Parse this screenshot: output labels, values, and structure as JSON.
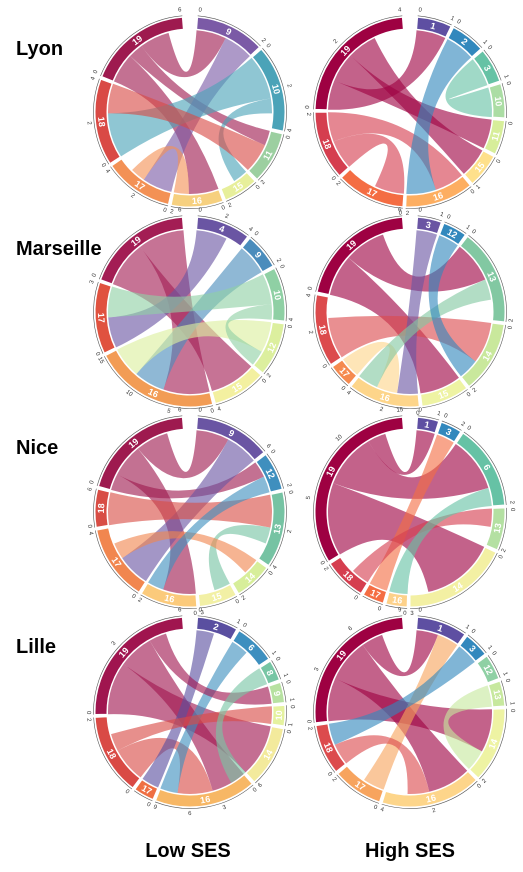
{
  "row_labels": [
    "Lyon",
    "Marseille",
    "Nice",
    "Lille"
  ],
  "column_labels": [
    "Low SES",
    "High SES"
  ],
  "chart_data": [
    {
      "type": "chord",
      "city": "Lyon",
      "ses": "Low SES",
      "sectors": [
        {
          "label": "9",
          "value": 4,
          "color": "#7b5aa6",
          "ticks": [
            "0",
            "2"
          ]
        },
        {
          "label": "10",
          "value": 5,
          "color": "#4ba3b8",
          "ticks": [
            "0",
            "2",
            "4"
          ]
        },
        {
          "label": "11",
          "value": 3,
          "color": "#9ccfa0",
          "ticks": [
            "0",
            "2"
          ]
        },
        {
          "label": "15",
          "value": 2,
          "color": "#e7ef9b",
          "ticks": [
            "0",
            "2"
          ]
        },
        {
          "label": "16",
          "value": 3,
          "color": "#f6d07f",
          "ticks": [
            "0",
            "2"
          ]
        },
        {
          "label": "17",
          "value": 4,
          "color": "#f39155",
          "ticks": [
            "0",
            "2",
            "4"
          ]
        },
        {
          "label": "18",
          "value": 5,
          "color": "#d94a45",
          "ticks": [
            "0",
            "2",
            "4"
          ]
        },
        {
          "label": "19",
          "value": 6,
          "color": "#9e1a4f",
          "ticks": [
            "0",
            "6"
          ]
        }
      ],
      "links": [
        {
          "from": "19",
          "to": "16",
          "value": 2
        },
        {
          "from": "19",
          "to": "11",
          "value": 1
        },
        {
          "from": "19",
          "to": "9",
          "value": 2
        },
        {
          "from": "9",
          "to": "17",
          "value": 2
        },
        {
          "from": "10",
          "to": "18",
          "value": 3
        },
        {
          "from": "10",
          "to": "15",
          "value": 1
        },
        {
          "from": "18",
          "to": "11",
          "value": 2
        },
        {
          "from": "17",
          "to": "16",
          "value": 1
        }
      ]
    },
    {
      "type": "chord",
      "city": "Lyon",
      "ses": "High SES",
      "sectors": [
        {
          "label": "1",
          "value": 1,
          "color": "#5e4fa2",
          "ticks": [
            "0",
            "1"
          ]
        },
        {
          "label": "2",
          "value": 1,
          "color": "#3288bd",
          "ticks": [
            "0",
            "1"
          ]
        },
        {
          "label": "3",
          "value": 1,
          "color": "#66c2a5",
          "ticks": [
            "0",
            "1"
          ]
        },
        {
          "label": "10",
          "value": 1,
          "color": "#abdda4",
          "ticks": [
            "0"
          ]
        },
        {
          "label": "11",
          "value": 1,
          "color": "#d7ee9a",
          "ticks": [
            "0"
          ]
        },
        {
          "label": "15",
          "value": 1,
          "color": "#fee08b",
          "ticks": [
            "0",
            "1"
          ]
        },
        {
          "label": "16",
          "value": 2,
          "color": "#fdae61",
          "ticks": [
            "0",
            "2"
          ]
        },
        {
          "label": "17",
          "value": 2,
          "color": "#f46d43",
          "ticks": [
            "0",
            "2"
          ]
        },
        {
          "label": "18",
          "value": 2,
          "color": "#d53e4f",
          "ticks": [
            "0",
            "2"
          ]
        },
        {
          "label": "19",
          "value": 4,
          "color": "#9e0142",
          "ticks": [
            "0",
            "2",
            "4"
          ]
        }
      ],
      "links": [
        {
          "from": "19",
          "to": "1",
          "value": 1
        },
        {
          "from": "19",
          "to": "11",
          "value": 1
        },
        {
          "from": "19",
          "to": "15",
          "value": 1
        },
        {
          "from": "18",
          "to": "17",
          "value": 1
        },
        {
          "from": "18",
          "to": "16",
          "value": 1
        },
        {
          "from": "2",
          "to": "16",
          "value": 1
        },
        {
          "from": "3",
          "to": "10",
          "value": 1
        }
      ]
    },
    {
      "type": "chord",
      "city": "Marseille",
      "ses": "Low SES",
      "sectors": [
        {
          "label": "4",
          "value": 3,
          "color": "#6a55a3",
          "ticks": [
            "0",
            "2",
            "4"
          ]
        },
        {
          "label": "9",
          "value": 2,
          "color": "#4a8cbc",
          "ticks": [
            "0",
            "2"
          ]
        },
        {
          "label": "10",
          "value": 3,
          "color": "#8fd0a4",
          "ticks": [
            "0",
            "4"
          ]
        },
        {
          "label": "12",
          "value": 3,
          "color": "#dcef9e",
          "ticks": [
            "0",
            "2"
          ]
        },
        {
          "label": "15",
          "value": 3,
          "color": "#f3f0a0",
          "ticks": [
            "0",
            "4"
          ]
        },
        {
          "label": "16",
          "value": 7,
          "color": "#f29c55",
          "ticks": [
            "0",
            "5",
            "10",
            "15"
          ]
        },
        {
          "label": "17",
          "value": 4,
          "color": "#e0523f",
          "ticks": [
            "0",
            "3"
          ]
        },
        {
          "label": "19",
          "value": 6,
          "color": "#a31d54",
          "ticks": [
            "0",
            "6"
          ]
        }
      ],
      "links": [
        {
          "from": "19",
          "to": "15",
          "value": 3
        },
        {
          "from": "19",
          "to": "16",
          "value": 3
        },
        {
          "from": "4",
          "to": "17",
          "value": 2
        },
        {
          "from": "9",
          "to": "16",
          "value": 2
        },
        {
          "from": "10",
          "to": "17",
          "value": 2
        },
        {
          "from": "12",
          "to": "16",
          "value": 2
        },
        {
          "from": "10",
          "to": "12",
          "value": 1
        }
      ]
    },
    {
      "type": "chord",
      "city": "Marseille",
      "ses": "High SES",
      "sectors": [
        {
          "label": "3",
          "value": 1,
          "color": "#6a55a3",
          "ticks": [
            "0",
            "1"
          ]
        },
        {
          "label": "12",
          "value": 1,
          "color": "#3288bd",
          "ticks": [
            "0",
            "1"
          ]
        },
        {
          "label": "13",
          "value": 4,
          "color": "#82c8a2",
          "ticks": [
            "0",
            "2"
          ]
        },
        {
          "label": "14",
          "value": 3,
          "color": "#c9e89c",
          "ticks": [
            "0",
            "2"
          ]
        },
        {
          "label": "15",
          "value": 2,
          "color": "#eef3a3",
          "ticks": [
            "0"
          ]
        },
        {
          "label": "16",
          "value": 3,
          "color": "#fdd58a",
          "ticks": [
            "0",
            "2",
            "4"
          ]
        },
        {
          "label": "17",
          "value": 1,
          "color": "#f58a4f",
          "ticks": [
            "0"
          ]
        },
        {
          "label": "18",
          "value": 3,
          "color": "#dc4b4d",
          "ticks": [
            "0",
            "2",
            "4"
          ]
        },
        {
          "label": "19",
          "value": 5,
          "color": "#9e0142",
          "ticks": [
            "0",
            "6"
          ]
        }
      ],
      "links": [
        {
          "from": "19",
          "to": "15",
          "value": 2
        },
        {
          "from": "19",
          "to": "13",
          "value": 2
        },
        {
          "from": "18",
          "to": "14",
          "value": 2
        },
        {
          "from": "3",
          "to": "16",
          "value": 1
        },
        {
          "from": "16",
          "to": "17",
          "value": 1
        },
        {
          "from": "13",
          "to": "16",
          "value": 1
        },
        {
          "from": "12",
          "to": "14",
          "value": 1
        }
      ]
    },
    {
      "type": "chord",
      "city": "Nice",
      "ses": "Low SES",
      "sectors": [
        {
          "label": "9",
          "value": 4,
          "color": "#6a55a3",
          "ticks": [
            "0",
            "6"
          ]
        },
        {
          "label": "12",
          "value": 2,
          "color": "#3f8fbe",
          "ticks": [
            "0",
            "2"
          ]
        },
        {
          "label": "13",
          "value": 4,
          "color": "#76c3a3",
          "ticks": [
            "0",
            "2",
            "4"
          ]
        },
        {
          "label": "14",
          "value": 2,
          "color": "#d7ee9a",
          "ticks": [
            "0",
            "2"
          ]
        },
        {
          "label": "15",
          "value": 2,
          "color": "#f2f0a5",
          "ticks": [
            "0",
            "3"
          ]
        },
        {
          "label": "16",
          "value": 3,
          "color": "#fbca7b",
          "ticks": [
            "0",
            "2"
          ]
        },
        {
          "label": "17",
          "value": 4,
          "color": "#f1864f",
          "ticks": [
            "0",
            "4"
          ]
        },
        {
          "label": "18",
          "value": 2,
          "color": "#d84d45",
          "ticks": [
            "0",
            "6"
          ]
        },
        {
          "label": "19",
          "value": 6,
          "color": "#9e1a4f",
          "ticks": [
            "0",
            "6"
          ]
        }
      ],
      "links": [
        {
          "from": "19",
          "to": "12",
          "value": 1
        },
        {
          "from": "19",
          "to": "16",
          "value": 2
        },
        {
          "from": "19",
          "to": "9",
          "value": 2
        },
        {
          "from": "9",
          "to": "17",
          "value": 2
        },
        {
          "from": "18",
          "to": "13",
          "value": 2
        },
        {
          "from": "13",
          "to": "15",
          "value": 1
        },
        {
          "from": "17",
          "to": "14",
          "value": 1
        },
        {
          "from": "12",
          "to": "16",
          "value": 1
        }
      ]
    },
    {
      "type": "chord",
      "city": "Nice",
      "ses": "High SES",
      "sectors": [
        {
          "label": "1",
          "value": 1,
          "color": "#5e4fa2",
          "ticks": [
            "0",
            "1"
          ]
        },
        {
          "label": "3",
          "value": 1,
          "color": "#3288bd",
          "ticks": [
            "0",
            "2"
          ]
        },
        {
          "label": "6",
          "value": 4,
          "color": "#66c2a5",
          "ticks": [
            "0",
            "2"
          ]
        },
        {
          "label": "13",
          "value": 2,
          "color": "#b4e0a2",
          "ticks": [
            "0",
            "2"
          ]
        },
        {
          "label": "14",
          "value": 5,
          "color": "#f3f0a3",
          "ticks": [
            "0",
            "3"
          ]
        },
        {
          "label": "16",
          "value": 1,
          "color": "#fdd18a",
          "ticks": [
            "0"
          ]
        },
        {
          "label": "17",
          "value": 1,
          "color": "#f46d43",
          "ticks": [
            "0"
          ]
        },
        {
          "label": "18",
          "value": 2,
          "color": "#d53e4f",
          "ticks": [
            "0",
            "2"
          ]
        },
        {
          "label": "19",
          "value": 9,
          "color": "#9e0142",
          "ticks": [
            "0",
            "5",
            "10",
            "15"
          ]
        }
      ],
      "links": [
        {
          "from": "19",
          "to": "14",
          "value": 4
        },
        {
          "from": "19",
          "to": "6",
          "value": 3
        },
        {
          "from": "19",
          "to": "1",
          "value": 1
        },
        {
          "from": "17",
          "to": "3",
          "value": 1
        },
        {
          "from": "18",
          "to": "13",
          "value": 1
        },
        {
          "from": "6",
          "to": "16",
          "value": 1
        }
      ]
    },
    {
      "type": "chord",
      "city": "Lille",
      "ses": "Low SES",
      "sectors": [
        {
          "label": "2",
          "value": 2,
          "color": "#5a4fa0",
          "ticks": [
            "0",
            "1"
          ]
        },
        {
          "label": "6",
          "value": 2,
          "color": "#3d8fbf",
          "ticks": [
            "0",
            "1"
          ]
        },
        {
          "label": "8",
          "value": 1,
          "color": "#77c5a4",
          "ticks": [
            "0",
            "1"
          ]
        },
        {
          "label": "9",
          "value": 1,
          "color": "#b7e1a1",
          "ticks": [
            "0",
            "1"
          ]
        },
        {
          "label": "10",
          "value": 1,
          "color": "#e5f29f",
          "ticks": [
            "0",
            "1"
          ]
        },
        {
          "label": "14",
          "value": 3,
          "color": "#f3ea9c",
          "ticks": [
            "0",
            "6"
          ]
        },
        {
          "label": "16",
          "value": 5,
          "color": "#f7b765",
          "ticks": [
            "0",
            "3",
            "6",
            "9"
          ]
        },
        {
          "label": "17",
          "value": 1,
          "color": "#ef6f43",
          "ticks": [
            "0"
          ]
        },
        {
          "label": "18",
          "value": 4,
          "color": "#d94a45",
          "ticks": [
            "0",
            "2"
          ]
        },
        {
          "label": "19",
          "value": 7,
          "color": "#a0154f",
          "ticks": [
            "0",
            "3",
            "6"
          ]
        }
      ],
      "links": [
        {
          "from": "19",
          "to": "14",
          "value": 3
        },
        {
          "from": "19",
          "to": "16",
          "value": 2
        },
        {
          "from": "18",
          "to": "16",
          "value": 2
        },
        {
          "from": "2",
          "to": "17",
          "value": 1
        },
        {
          "from": "6",
          "to": "16",
          "value": 1
        },
        {
          "from": "19",
          "to": "9",
          "value": 1
        },
        {
          "from": "18",
          "to": "10",
          "value": 1
        },
        {
          "from": "8",
          "to": "14",
          "value": 1
        }
      ]
    },
    {
      "type": "chord",
      "city": "Lille",
      "ses": "High SES",
      "sectors": [
        {
          "label": "1",
          "value": 2,
          "color": "#5e4fa2",
          "ticks": [
            "0",
            "1"
          ]
        },
        {
          "label": "3",
          "value": 1,
          "color": "#3288bd",
          "ticks": [
            "0",
            "1"
          ]
        },
        {
          "label": "12",
          "value": 1,
          "color": "#8fd0a4",
          "ticks": [
            "0",
            "1"
          ]
        },
        {
          "label": "13",
          "value": 1,
          "color": "#c7e89e",
          "ticks": [
            "0",
            "1"
          ]
        },
        {
          "label": "14",
          "value": 3,
          "color": "#eef3a3",
          "ticks": [
            "0",
            "2"
          ]
        },
        {
          "label": "16",
          "value": 4,
          "color": "#fdd58a",
          "ticks": [
            "0",
            "2",
            "4"
          ]
        },
        {
          "label": "17",
          "value": 2,
          "color": "#f7a45e",
          "ticks": [
            "0",
            "2"
          ]
        },
        {
          "label": "18",
          "value": 2,
          "color": "#dc4b4d",
          "ticks": [
            "0",
            "2"
          ]
        },
        {
          "label": "19",
          "value": 6,
          "color": "#9e0142",
          "ticks": [
            "0",
            "3",
            "6",
            "9"
          ]
        }
      ],
      "links": [
        {
          "from": "19",
          "to": "14",
          "value": 2
        },
        {
          "from": "19",
          "to": "16",
          "value": 2
        },
        {
          "from": "19",
          "to": "1",
          "value": 1
        },
        {
          "from": "17",
          "to": "1",
          "value": 1
        },
        {
          "from": "18",
          "to": "16",
          "value": 1
        },
        {
          "from": "13",
          "to": "14",
          "value": 1
        },
        {
          "from": "3",
          "to": "18",
          "value": 1
        }
      ]
    }
  ]
}
